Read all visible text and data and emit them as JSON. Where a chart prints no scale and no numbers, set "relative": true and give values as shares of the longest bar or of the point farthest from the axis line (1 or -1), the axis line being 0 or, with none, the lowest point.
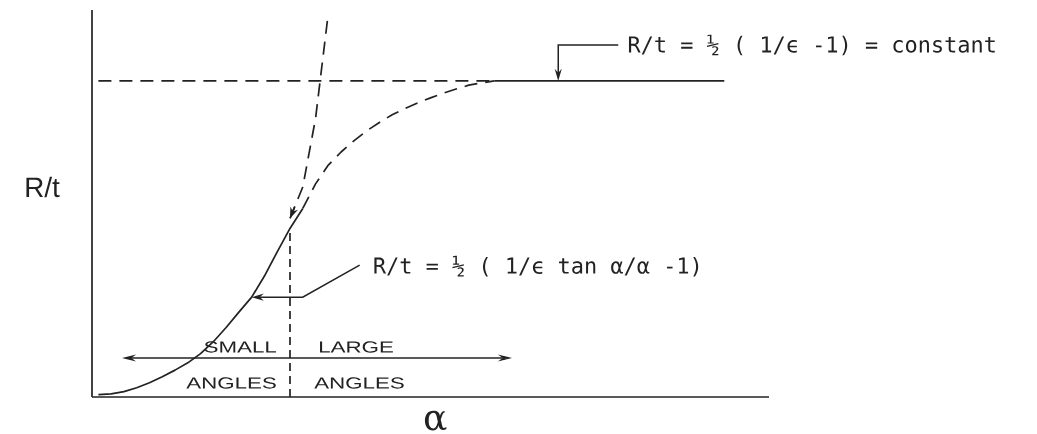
{
  "chart_data": {
    "type": "line",
    "relative": true,
    "xlabel": "α",
    "ylabel": "R/t",
    "tick_labels": false,
    "categories": [
      null,
      null,
      null,
      null,
      null,
      null,
      null,
      null,
      null,
      null,
      null,
      null,
      null,
      null,
      null,
      null,
      null,
      null,
      null,
      null,
      null,
      null,
      null,
      null,
      null,
      null,
      null,
      null,
      null,
      null,
      null,
      null,
      null,
      null,
      null,
      null,
      null,
      null,
      null,
      null,
      null,
      null,
      null,
      null,
      null,
      null,
      null,
      null,
      null,
      null,
      null,
      null,
      null
    ],
    "series": [
      {
        "color": "#222222",
        "line_style": "solid",
        "values": [
          0.006,
          0.008,
          0.014,
          0.024,
          0.037,
          0.053,
          0.07,
          0.089,
          0.113,
          0.144,
          0.181,
          0.221,
          0.26,
          0.315,
          0.378,
          0.439,
          0.491,
          null,
          null,
          null,
          null,
          null,
          null,
          null,
          null,
          null,
          null,
          null,
          null,
          null,
          null,
          null,
          null,
          null,
          null,
          null,
          null,
          null,
          null,
          null,
          null,
          null,
          null,
          null,
          null,
          null,
          null,
          null,
          null,
          null,
          null,
          null,
          null
        ]
      },
      {
        "color": "#222222",
        "line_style": "dashed",
        "values": [
          null,
          null,
          null,
          null,
          null,
          null,
          null,
          null,
          null,
          null,
          null,
          null,
          null,
          null,
          null,
          null,
          0.491,
          0.555,
          0.604,
          0.638,
          0.667,
          0.693,
          0.715,
          0.735,
          0.751,
          0.766,
          0.779,
          0.791,
          0.802,
          0.812,
          0.818,
          0.823,
          null,
          null,
          null,
          null,
          null,
          null,
          null,
          null,
          null,
          null,
          null,
          null,
          null,
          null,
          null,
          null,
          null,
          null,
          null,
          null,
          null
        ]
      },
      {
        "color": "#222222",
        "line_style": "solid",
        "values": [
          null,
          null,
          null,
          null,
          null,
          null,
          null,
          null,
          null,
          null,
          null,
          null,
          null,
          null,
          null,
          null,
          null,
          null,
          null,
          null,
          null,
          null,
          null,
          null,
          null,
          null,
          null,
          null,
          null,
          null,
          null,
          0.823,
          0.823,
          0.823,
          0.823,
          0.823,
          0.823,
          0.823,
          0.823,
          0.823,
          0.823,
          0.823,
          0.823,
          0.823,
          0.823,
          0.823,
          0.823,
          0.823,
          0.823,
          0.823,
          null,
          null,
          null
        ]
      },
      {
        "color": "#222222",
        "line_style": "dashed",
        "values": [
          0.823,
          0.823,
          0.823,
          0.823,
          0.823,
          0.823,
          0.823,
          0.823,
          0.823,
          0.823,
          0.823,
          0.823,
          0.823,
          0.823,
          0.823,
          0.823,
          0.823,
          0.823,
          0.823,
          0.823,
          0.823,
          0.823,
          0.823,
          0.823,
          0.823,
          0.823,
          0.823,
          0.823,
          0.823,
          0.823,
          0.823,
          0.823,
          null,
          null,
          null,
          null,
          null,
          null,
          null,
          null,
          null,
          null,
          null,
          null,
          null,
          null,
          null,
          null,
          null,
          null,
          null,
          null,
          null
        ]
      },
      {
        "color": "#222222",
        "line_style": "dashed",
        "values": [
          null,
          null,
          null,
          null,
          null,
          null,
          null,
          null,
          null,
          null,
          null,
          null,
          null,
          null,
          null,
          0.465,
          0.547,
          0.725,
          1,
          null,
          null,
          null,
          null,
          null,
          null,
          null,
          null,
          null,
          null,
          null,
          null,
          null,
          null,
          null,
          null,
          null,
          null,
          null,
          null,
          null,
          null,
          null,
          null,
          null,
          null,
          null,
          null,
          null,
          null,
          null,
          null,
          null,
          null
        ]
      }
    ],
    "annotations": [
      "R/t = ½ ( 1/ϵ -1) = constant",
      "R/t = ½ ( 1/ϵ tan α/α -1)",
      "SMALL",
      "ANGLES",
      "LARGE",
      "ANGLES"
    ]
  }
}
